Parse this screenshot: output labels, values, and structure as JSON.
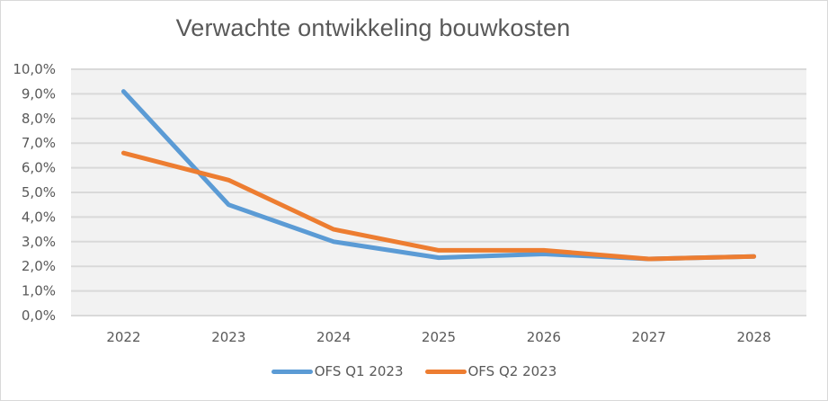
{
  "chart_data": {
    "type": "line",
    "title": "Verwachte ontwikkeling bouwkosten",
    "xlabel": "",
    "ylabel": "",
    "categories": [
      "2022",
      "2023",
      "2024",
      "2025",
      "2026",
      "2027",
      "2028"
    ],
    "series": [
      {
        "name": "OFS Q1 2023",
        "color": "#5b9bd5",
        "values": [
          9.1,
          4.5,
          3.0,
          2.35,
          2.5,
          2.3,
          2.4
        ]
      },
      {
        "name": "OFS Q2 2023",
        "color": "#ed7d31",
        "values": [
          6.6,
          5.5,
          3.5,
          2.65,
          2.65,
          2.3,
          2.4
        ]
      }
    ],
    "yticks": [
      "0,0%",
      "1,0%",
      "2,0%",
      "3,0%",
      "4,0%",
      "5,0%",
      "6,0%",
      "7,0%",
      "8,0%",
      "9,0%",
      "10,0%"
    ],
    "ylim": [
      0,
      10
    ],
    "grid": true,
    "legend_position": "bottom",
    "plot_background": "#f2f2f2"
  }
}
